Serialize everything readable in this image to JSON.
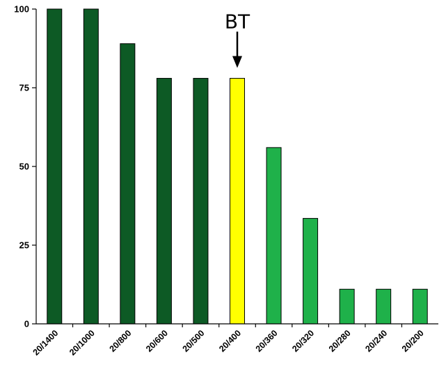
{
  "chart_data": {
    "type": "bar",
    "title": "",
    "xlabel": "",
    "ylabel": "",
    "categories": [
      "20/1400",
      "20/1000",
      "20/800",
      "20/600",
      "20/500",
      "20/400",
      "20/360",
      "20/320",
      "20/280",
      "20/240",
      "20/200"
    ],
    "values": [
      100,
      100,
      89,
      78,
      78,
      78,
      56,
      33.5,
      11,
      11,
      11
    ],
    "bar_colors": [
      "#0d5a25",
      "#0d5a25",
      "#0d5a25",
      "#0d5a25",
      "#0d5a25",
      "#ffff00",
      "#1fb14a",
      "#1fb14a",
      "#1fb14a",
      "#1fb14a",
      "#1fb14a"
    ],
    "ylim": [
      0,
      100
    ],
    "yticks": [
      "0",
      "25",
      "50",
      "75",
      "100"
    ],
    "grid": false,
    "annotation": {
      "text": "BT",
      "category": "20/400",
      "marker": "arrow-down"
    }
  }
}
